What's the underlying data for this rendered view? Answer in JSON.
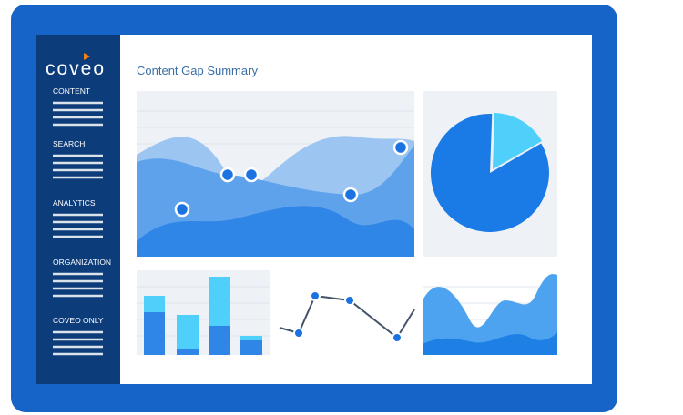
{
  "logo": "coveo",
  "sidebar": [
    "CONTENT",
    "SEARCH",
    "ANALYTICS",
    "ORGANIZATION",
    "COVEO ONLY"
  ],
  "title": "Content Gap Summary"
}
